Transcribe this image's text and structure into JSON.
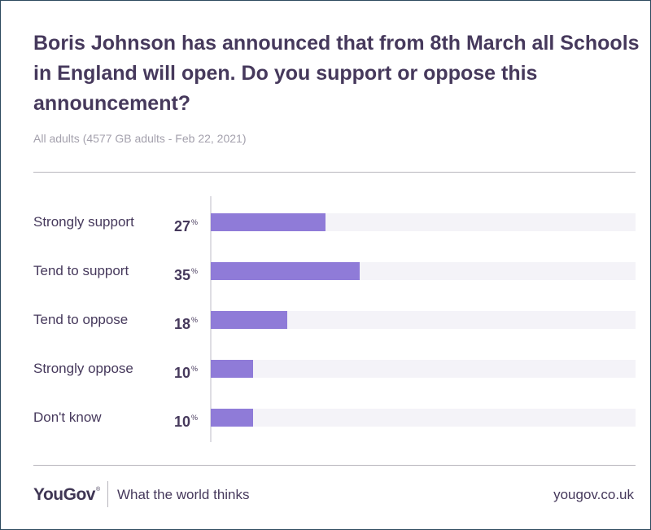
{
  "header": {
    "title": "Boris Johnson has announced that from 8th March all Schools in England will open. Do you support or oppose this announcement?",
    "subtitle": "All adults (4577 GB adults - Feb 22, 2021)"
  },
  "chart_data": {
    "type": "bar",
    "orientation": "horizontal",
    "title": "Boris Johnson has announced that from 8th March all Schools in England will open. Do you support or oppose this announcement?",
    "subtitle": "All adults (4577 GB adults - Feb 22, 2021)",
    "categories": [
      "Strongly support",
      "Tend to support",
      "Tend to oppose",
      "Strongly oppose",
      "Don't know"
    ],
    "values": [
      27,
      35,
      18,
      10,
      10
    ],
    "value_suffix": "%",
    "xlim": [
      0,
      100
    ],
    "grid": false,
    "legend": "none",
    "bar_color": "#8f7bd8",
    "track_color": "#f4f3f8"
  },
  "footer": {
    "brand": "YouGov",
    "registered_mark": "®",
    "tagline": "What the world thinks",
    "url": "yougov.co.uk"
  },
  "colors": {
    "text": "#46395c",
    "muted_text": "#a4a1ad",
    "bar": "#8f7bd8",
    "track": "#f4f3f8",
    "frame_border": "#2d4a5e"
  }
}
